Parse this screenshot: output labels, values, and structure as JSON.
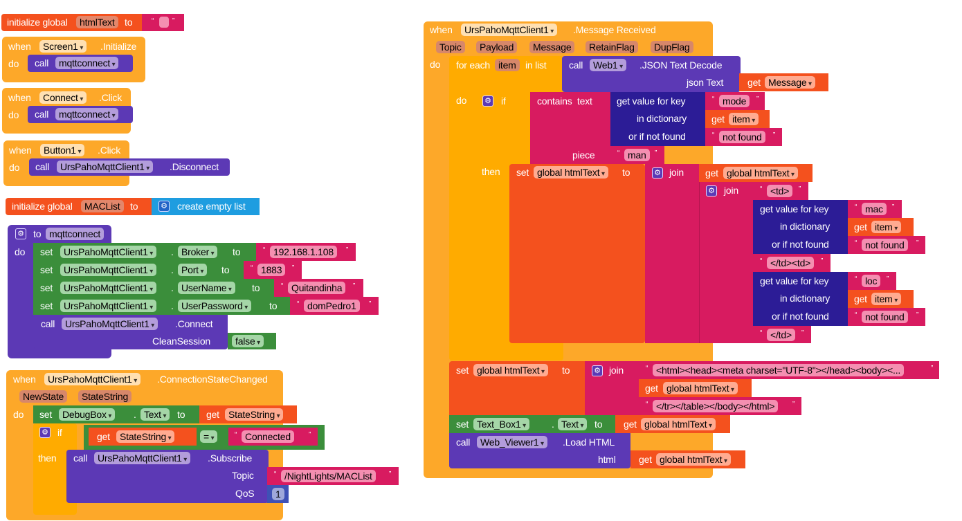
{
  "blocks": {
    "init_html": {
      "prefix": "initialize global",
      "name": "htmlText",
      "to": "to",
      "open_quote": "“",
      "close_quote": "”"
    },
    "screen_init": {
      "when": "when",
      "component": "Screen1",
      "event": ".Initialize",
      "do": "do",
      "call": "call",
      "proc": "mqttconnect"
    },
    "connect_click": {
      "when": "when",
      "component": "Connect",
      "event": ".Click",
      "do": "do",
      "call": "call",
      "proc": "mqttconnect"
    },
    "button_click": {
      "when": "when",
      "component": "Button1",
      "event": ".Click",
      "do": "do",
      "call": "call",
      "target": "UrsPahoMqttClient1",
      "method": ".Disconnect"
    },
    "init_maclist": {
      "prefix": "initialize global",
      "name": "MACList",
      "to": "to",
      "value": "create empty list"
    },
    "proc_mqttconnect": {
      "to": "to",
      "name": "mqttconnect",
      "do": "do",
      "sets": [
        {
          "set": "set",
          "component": "UrsPahoMqttClient1",
          "dot": ".",
          "prop": "Broker",
          "to": "to",
          "value": "192.168.1.108"
        },
        {
          "set": "set",
          "component": "UrsPahoMqttClient1",
          "dot": ".",
          "prop": "Port",
          "to": "to",
          "value": "1883"
        },
        {
          "set": "set",
          "component": "UrsPahoMqttClient1",
          "dot": ".",
          "prop": "UserName",
          "to": "to",
          "value": "Quitandinha"
        },
        {
          "set": "set",
          "component": "UrsPahoMqttClient1",
          "dot": ".",
          "prop": "UserPassword",
          "to": "to",
          "value": "domPedro1"
        }
      ],
      "call": "call",
      "call_component": "UrsPahoMqttClient1",
      "call_method": ".Connect",
      "param": "CleanSession",
      "param_value": "false"
    },
    "conn_state": {
      "when": "when",
      "component": "UrsPahoMqttClient1",
      "event": ".ConnectionStateChanged",
      "params": [
        "NewState",
        "StateString"
      ],
      "do": "do",
      "set": "set",
      "set_component": "DebugBox",
      "dot": ".",
      "set_prop": "Text",
      "to": "to",
      "get": "get",
      "get_var": "StateString",
      "if": "if",
      "cmp_get": "get",
      "cmp_var": "StateString",
      "op": "=",
      "cmp_value": "Connected",
      "then": "then",
      "call": "call",
      "call_component": "UrsPahoMqttClient1",
      "call_method": ".Subscribe",
      "topic_label": "Topic",
      "topic_value": "/NightLights/MACList",
      "qos_label": "QoS",
      "qos_value": "1"
    },
    "msg_received": {
      "when": "when",
      "component": "UrsPahoMqttClient1",
      "event": ".Message Received",
      "params": [
        "Topic",
        "Payload",
        "Message",
        "RetainFlag",
        "DupFlag"
      ],
      "do": "do",
      "foreach": "for each",
      "item": "item",
      "in_list": "in list",
      "call": "call",
      "web": "Web1",
      "decode": ".JSON Text Decode",
      "json_text": "json Text",
      "get": "get",
      "message": "Message",
      "inner_do": "do",
      "if": "if",
      "contains": "contains  text",
      "gvk": "get value for key",
      "key_mode": "mode",
      "in_dict": "in dictionary",
      "get_item": "item",
      "or_not_found": "or if not found",
      "not_found": "not found",
      "piece": "piece",
      "man": "man",
      "then": "then",
      "set": "set",
      "global_html": "global htmlText",
      "to": "to",
      "join": "join",
      "td_open": "<td>",
      "key_mac": "mac",
      "td_mid": "</td><td>",
      "key_loc": "loc",
      "td_close": "</td>",
      "html_head": "<html><head><meta charset=\"UTF-8\"></head><body><...",
      "html_tail": "</tr></table></body></html>",
      "set_tb": "Text_Box1",
      "tb_prop": "Text",
      "dot": ".",
      "call_wv": "Web_Viewer1",
      "load_html": ".Load HTML",
      "html": "html"
    }
  }
}
